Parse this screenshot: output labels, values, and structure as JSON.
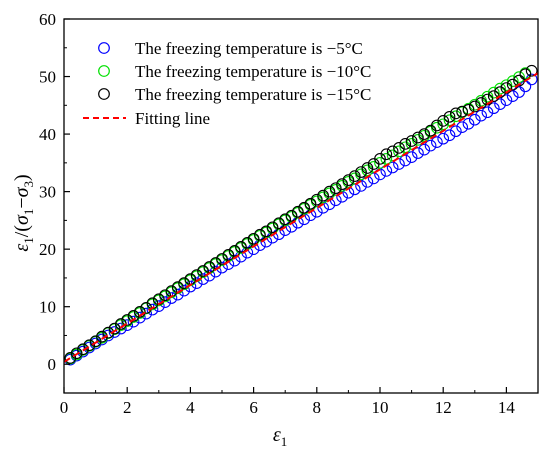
{
  "chart_data": {
    "type": "scatter",
    "xlabel": "ε1",
    "ylabel": "ε1/(σ1−σ3)",
    "xlim": [
      0,
      15
    ],
    "ylim": [
      -5,
      60
    ],
    "x_ticks": [
      0,
      2,
      4,
      6,
      8,
      10,
      12,
      14
    ],
    "y_ticks": [
      0,
      10,
      20,
      30,
      40,
      50,
      60
    ],
    "grid": false,
    "legend_position": "top-left",
    "series": [
      {
        "name": "The freezing temperature is −5°C",
        "color": "#0000ff",
        "marker": "open-circle",
        "x": [
          0.2,
          0.4,
          0.6,
          0.8,
          1.0,
          1.2,
          1.4,
          1.6,
          1.8,
          2.0,
          2.2,
          2.4,
          2.6,
          2.8,
          3.0,
          3.2,
          3.4,
          3.6,
          3.8,
          4.0,
          4.2,
          4.4,
          4.6,
          4.8,
          5.0,
          5.2,
          5.4,
          5.6,
          5.8,
          6.0,
          6.2,
          6.4,
          6.6,
          6.8,
          7.0,
          7.2,
          7.4,
          7.6,
          7.8,
          8.0,
          8.2,
          8.4,
          8.6,
          8.8,
          9.0,
          9.2,
          9.4,
          9.6,
          9.8,
          10.0,
          10.2,
          10.4,
          10.6,
          10.8,
          11.0,
          11.2,
          11.4,
          11.6,
          11.8,
          12.0,
          12.2,
          12.4,
          12.6,
          12.8,
          13.0,
          13.2,
          13.4,
          13.6,
          13.8,
          14.0,
          14.2,
          14.4,
          14.6,
          14.8
        ],
        "y": [
          0.8,
          1.5,
          2.2,
          2.9,
          3.6,
          4.3,
          5.0,
          5.6,
          6.2,
          6.8,
          7.4,
          8.1,
          8.8,
          9.5,
          10.1,
          10.8,
          11.5,
          12.1,
          12.8,
          13.5,
          14.1,
          14.8,
          15.4,
          16.1,
          16.8,
          17.4,
          18.0,
          18.7,
          19.4,
          20.0,
          20.7,
          21.3,
          22.0,
          22.6,
          23.3,
          23.9,
          24.6,
          25.2,
          25.9,
          26.5,
          27.2,
          27.8,
          28.5,
          29.1,
          29.8,
          30.4,
          31.0,
          31.7,
          32.3,
          33.0,
          33.6,
          34.2,
          34.8,
          35.4,
          36.0,
          36.7,
          37.3,
          38.0,
          38.6,
          39.2,
          39.8,
          40.5,
          41.2,
          41.8,
          42.5,
          43.2,
          43.8,
          44.5,
          45.2,
          45.9,
          46.6,
          47.3,
          48.3,
          49.5
        ]
      },
      {
        "name": "The freezing temperature is −10°C",
        "color": "#00e000",
        "marker": "open-circle",
        "x": [
          0.2,
          0.4,
          0.6,
          0.8,
          1.0,
          1.2,
          1.4,
          1.6,
          1.8,
          2.0,
          2.2,
          2.4,
          2.6,
          2.8,
          3.0,
          3.2,
          3.4,
          3.6,
          3.8,
          4.0,
          4.2,
          4.4,
          4.6,
          4.8,
          5.0,
          5.2,
          5.4,
          5.6,
          5.8,
          6.0,
          6.2,
          6.4,
          6.6,
          6.8,
          7.0,
          7.2,
          7.4,
          7.6,
          7.8,
          8.0,
          8.2,
          8.4,
          8.6,
          8.8,
          9.0,
          9.2,
          9.4,
          9.6,
          9.8,
          10.0,
          10.2,
          10.4,
          10.6,
          10.8,
          11.0,
          11.2,
          11.4,
          11.6,
          11.8,
          12.0,
          12.2,
          12.4,
          12.6,
          12.8,
          13.0,
          13.2,
          13.4,
          13.6,
          13.8,
          14.0,
          14.2,
          14.4,
          14.6
        ],
        "y": [
          1.0,
          1.7,
          2.5,
          3.2,
          3.9,
          4.6,
          5.4,
          6.1,
          6.8,
          7.5,
          8.2,
          8.9,
          9.7,
          10.4,
          11.1,
          11.8,
          12.5,
          13.2,
          13.9,
          14.6,
          15.3,
          16.0,
          16.7,
          17.4,
          18.1,
          18.8,
          19.5,
          20.2,
          20.9,
          21.6,
          22.3,
          22.9,
          23.6,
          24.3,
          25.0,
          25.6,
          26.3,
          27.0,
          27.7,
          28.3,
          29.0,
          29.7,
          30.3,
          31.0,
          31.7,
          32.3,
          33.0,
          33.7,
          34.3,
          35.0,
          35.7,
          36.3,
          37.0,
          37.7,
          38.3,
          39.0,
          39.7,
          40.4,
          41.1,
          41.7,
          42.4,
          43.1,
          43.8,
          44.4,
          45.1,
          45.8,
          46.5,
          47.2,
          47.9,
          48.5,
          49.2,
          49.9,
          50.6
        ]
      },
      {
        "name": "The freezing temperature is −15°C",
        "color": "#000000",
        "marker": "open-circle",
        "x": [
          0.2,
          0.4,
          0.6,
          0.8,
          1.0,
          1.2,
          1.4,
          1.6,
          1.8,
          2.0,
          2.2,
          2.4,
          2.6,
          2.8,
          3.0,
          3.2,
          3.4,
          3.6,
          3.8,
          4.0,
          4.2,
          4.4,
          4.6,
          4.8,
          5.0,
          5.2,
          5.4,
          5.6,
          5.8,
          6.0,
          6.2,
          6.4,
          6.6,
          6.8,
          7.0,
          7.2,
          7.4,
          7.6,
          7.8,
          8.0,
          8.2,
          8.4,
          8.6,
          8.8,
          9.0,
          9.2,
          9.4,
          9.6,
          9.8,
          10.0,
          10.2,
          10.4,
          10.6,
          10.8,
          11.0,
          11.2,
          11.4,
          11.6,
          11.8,
          12.0,
          12.2,
          12.4,
          12.6,
          12.8,
          13.0,
          13.2,
          13.4,
          13.6,
          13.8,
          14.0,
          14.2,
          14.4,
          14.6,
          14.8
        ],
        "y": [
          1.1,
          1.9,
          2.6,
          3.3,
          4.0,
          4.8,
          5.5,
          6.2,
          7.0,
          7.7,
          8.4,
          9.1,
          9.8,
          10.6,
          11.3,
          12.0,
          12.7,
          13.4,
          14.1,
          14.8,
          15.5,
          16.2,
          16.9,
          17.6,
          18.3,
          19.0,
          19.7,
          20.4,
          21.1,
          21.8,
          22.5,
          23.1,
          23.8,
          24.5,
          25.2,
          25.8,
          26.5,
          27.2,
          27.9,
          28.6,
          29.3,
          30.0,
          30.6,
          31.3,
          32.0,
          32.7,
          33.4,
          34.1,
          34.8,
          35.7,
          36.5,
          37.0,
          37.6,
          38.3,
          38.8,
          39.4,
          40.0,
          40.6,
          41.5,
          42.3,
          43.0,
          43.6,
          43.9,
          44.2,
          44.8,
          45.4,
          46.0,
          46.6,
          47.3,
          48.0,
          48.6,
          49.3,
          50.4,
          51.0
        ]
      }
    ],
    "fit_line": {
      "name": "Fitting line",
      "color": "#ff0000",
      "style": "dashed",
      "x": [
        0,
        15
      ],
      "y": [
        0.4,
        50.6
      ]
    }
  }
}
